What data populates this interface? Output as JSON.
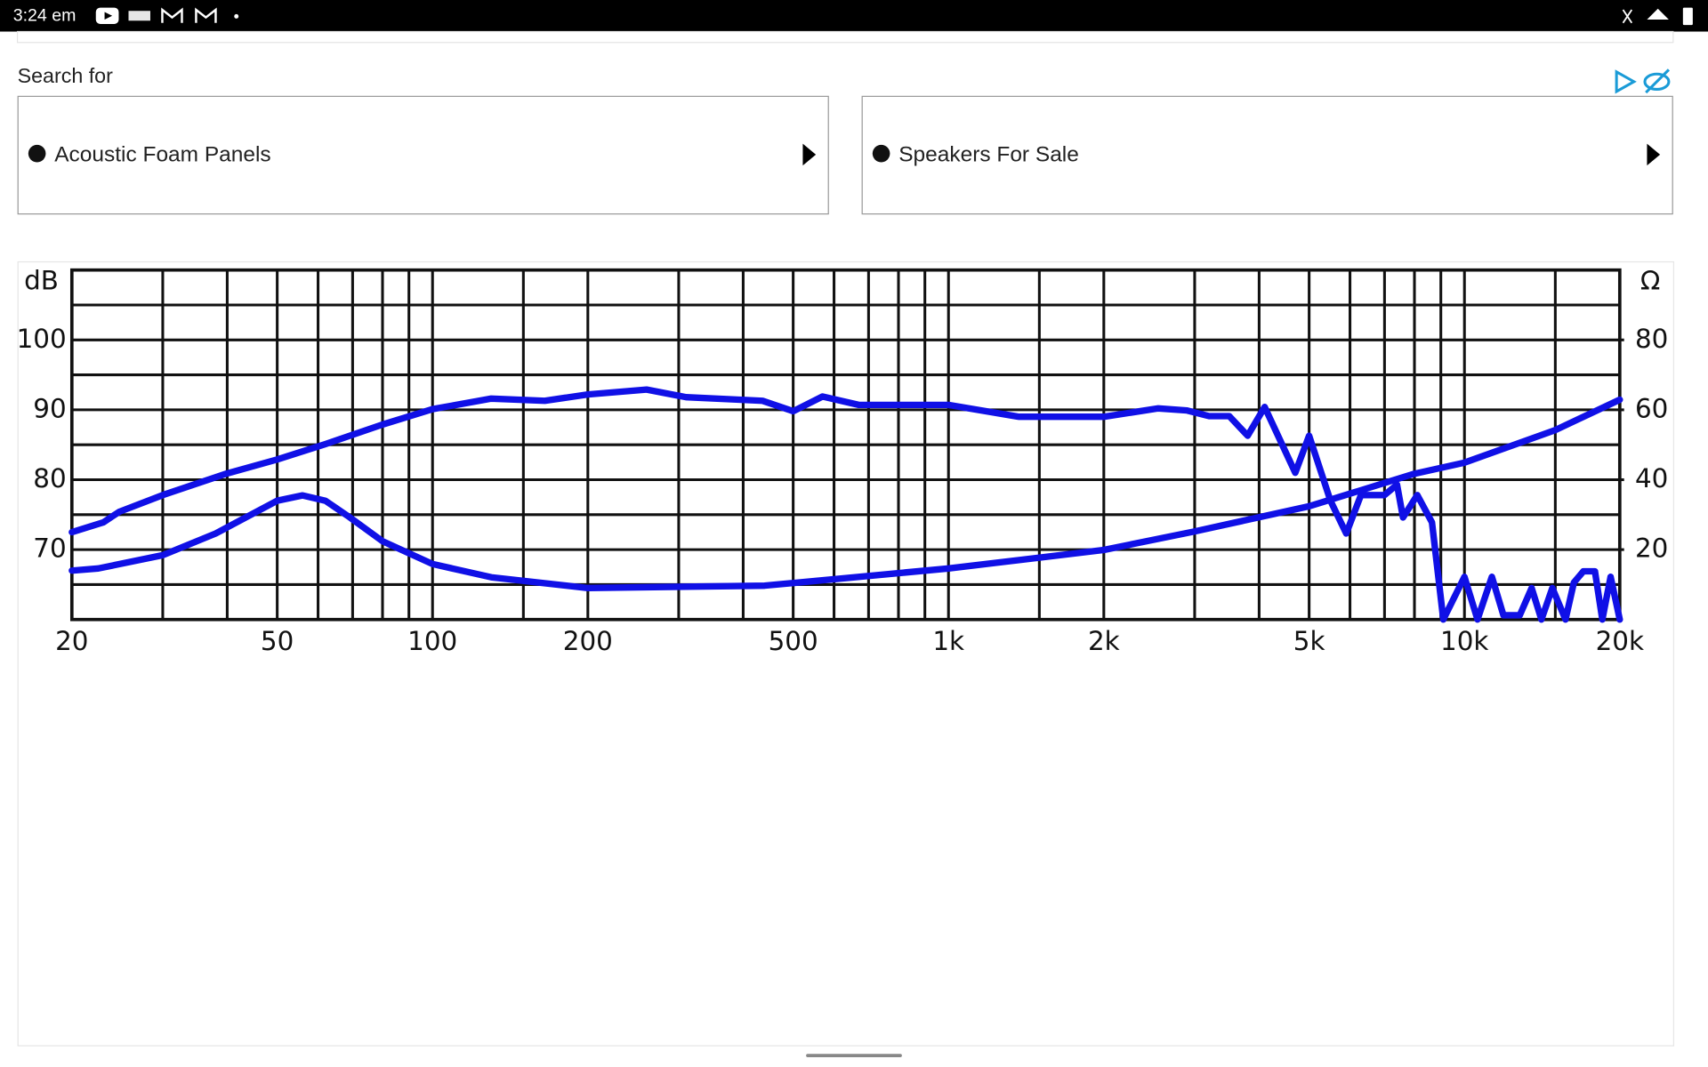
{
  "status_bar": {
    "time": "3:24 em"
  },
  "search_label": "Search for",
  "ads": [
    "Acoustic Foam Panels",
    "Speakers For Sale"
  ],
  "chart_data": {
    "type": "line",
    "y_label": "dB",
    "y2_label": "Ω",
    "log_x": true,
    "grid": true,
    "xlim": [
      20,
      20000
    ],
    "xticks": [
      20,
      50,
      100,
      200,
      500,
      {
        "value": 1000,
        "label": "1k"
      },
      {
        "value": 2000,
        "label": "2k"
      },
      {
        "value": 5000,
        "label": "5k"
      },
      {
        "value": 10000,
        "label": "10k"
      },
      {
        "value": 20000,
        "label": "20k"
      }
    ],
    "x_minor_ticks": [
      30,
      40,
      60,
      70,
      80,
      90,
      150,
      300,
      400,
      600,
      700,
      800,
      900,
      1500,
      3000,
      4000,
      6000,
      7000,
      8000,
      9000,
      15000
    ],
    "ylim": [
      60,
      110
    ],
    "yticks": [
      70,
      80,
      90,
      100
    ],
    "y_minor_ticks": [
      65,
      75,
      85,
      95,
      105
    ],
    "y2lim": [
      0,
      100
    ],
    "y2ticks": [
      20,
      40,
      60,
      80
    ],
    "series": [
      {
        "color": "#1010e6",
        "axis": "y",
        "x": [
          20,
          23,
          24.7,
          30,
          40,
          50,
          62,
          80,
          100,
          130,
          165,
          200,
          260,
          310,
          436,
          500,
          570,
          670,
          1000,
          1370,
          1600,
          2000,
          2550,
          2900,
          3200,
          3500,
          3800,
          4100,
          4700,
          5000,
          5500,
          5900,
          6300,
          7000,
          7400,
          7600,
          8100,
          8650,
          9100,
          10000,
          10600,
          11300,
          11900,
          12800,
          13500,
          14100,
          14800,
          15700,
          16300,
          17000,
          17900,
          18500,
          19200,
          20000
        ],
        "values": [
          72.5,
          73.9,
          75.4,
          77.8,
          80.9,
          82.9,
          85.1,
          87.9,
          90.1,
          91.6,
          91.3,
          92.2,
          92.9,
          91.8,
          91.3,
          89.8,
          91.9,
          90.7,
          90.7,
          89.0,
          89.0,
          89.0,
          90.2,
          89.9,
          89.1,
          89.1,
          86.3,
          90.4,
          81.0,
          86.3,
          77.0,
          72.3,
          77.8,
          77.8,
          79.3,
          74.6,
          77.8,
          73.9,
          60,
          66.1,
          60,
          66.1,
          60.6,
          60.6,
          64.5,
          60,
          64.5,
          60,
          65.3,
          66.9,
          66.9,
          60,
          66.1,
          60
        ]
      },
      {
        "color": "#1010e6",
        "axis": "y2",
        "x": [
          20,
          22.5,
          30,
          38,
          50,
          56,
          62,
          69,
          80,
          100,
          130,
          200,
          440,
          1000,
          2000,
          3000,
          5000,
          8000,
          10000,
          15000,
          20000
        ],
        "values": [
          14.0,
          14.6,
          18.4,
          24.6,
          34.0,
          35.5,
          34.0,
          29.3,
          22.4,
          15.9,
          12.1,
          9.0,
          9.7,
          14.6,
          19.9,
          25.2,
          32.4,
          41.7,
          44.9,
          54.2,
          62.9
        ]
      }
    ]
  }
}
